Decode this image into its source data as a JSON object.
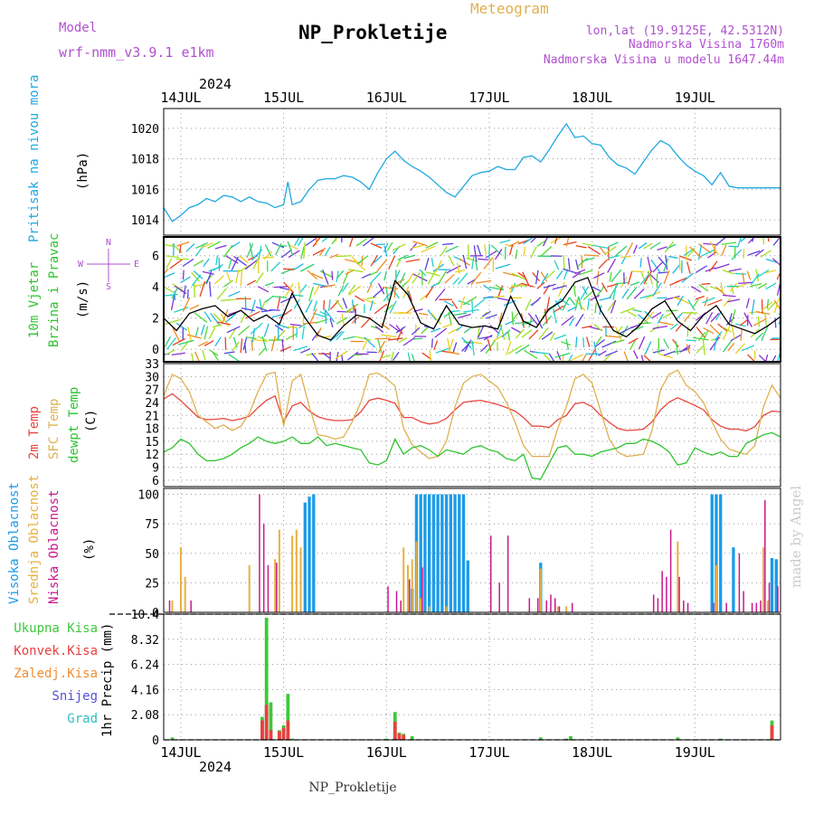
{
  "header": {
    "model_label": "Model",
    "model_name": "wrf-nmm_v3.9.1 e1km",
    "location": "NP_Prokletije",
    "meteogram_label": "Meteogram",
    "lonlat": "lon,lat (19.9125E, 42.5312N)",
    "elevation": "Nadmorska Visina 1760m",
    "model_elevation": "Nadmorska Visina u modelu 1647.44m",
    "footer": "NP_Prokletije",
    "watermark": "made by Angel"
  },
  "colors": {
    "pressure": "#1fa8e0",
    "temp2m": "#e8453c",
    "sfc": "#e0b050",
    "dewpt": "#2ec42e",
    "high_cloud": "#1a9be8",
    "mid_cloud": "#e8b040",
    "low_cloud": "#c8188c",
    "total_precip": "#3cc83c",
    "conv_precip": "#e84040",
    "frozen_precip": "#f08c30",
    "snow": "#5a50d8",
    "graupel": "#30c0c0",
    "grid": "#9a9a9a"
  },
  "chart_data": [
    {
      "type": "line",
      "panel": "pressure",
      "ylabel": "Pritisak na nivou mora",
      "unit": "(hPa)",
      "ylim": [
        1013,
        1021.3
      ],
      "yticks": [
        1014,
        1016,
        1018,
        1020
      ],
      "x_hours": [
        0,
        2,
        4,
        6,
        8,
        10,
        12,
        14,
        16,
        18,
        20,
        22,
        24,
        26,
        28,
        29,
        30,
        32,
        34,
        36,
        38,
        40,
        42,
        44,
        46,
        48,
        50,
        52,
        54,
        56,
        58,
        60,
        62,
        64,
        66,
        68,
        70,
        72,
        74,
        76,
        78,
        80,
        82,
        84,
        86,
        88,
        90,
        92,
        94,
        96,
        98,
        100,
        102,
        104,
        106,
        108,
        110,
        112,
        114,
        116,
        118,
        120,
        122,
        124,
        126,
        128,
        130,
        132,
        134,
        136,
        138,
        140,
        142,
        144
      ],
      "values": [
        1014.8,
        1013.9,
        1014.3,
        1014.8,
        1015.0,
        1015.4,
        1015.2,
        1015.6,
        1015.5,
        1015.2,
        1015.5,
        1015.2,
        1015.1,
        1014.8,
        1015.0,
        1016.5,
        1015.0,
        1015.2,
        1016.0,
        1016.6,
        1016.7,
        1016.7,
        1016.9,
        1016.8,
        1016.5,
        1016.0,
        1017.1,
        1018.0,
        1018.5,
        1017.9,
        1017.5,
        1017.2,
        1016.8,
        1016.3,
        1015.8,
        1015.5,
        1016.2,
        1016.9,
        1017.1,
        1017.2,
        1017.5,
        1017.3,
        1017.3,
        1018.1,
        1018.2,
        1017.8,
        1018.6,
        1019.5,
        1020.3,
        1019.4,
        1019.5,
        1019.0,
        1018.9,
        1018.1,
        1017.6,
        1017.4,
        1017.0,
        1017.8,
        1018.6,
        1019.2,
        1018.9,
        1018.2,
        1017.6,
        1017.2,
        1016.9,
        1016.3,
        1017.1,
        1016.2,
        1016.1,
        1016.1,
        1016.1,
        1016.1,
        1016.1,
        1016.1
      ]
    },
    {
      "type": "line",
      "panel": "wind",
      "ylabel": "10m Vjetar",
      "ylabel2": "Brzina i Pravac",
      "unit": "(m/s)",
      "compass": {
        "n": "N",
        "w": "W",
        "e": "E",
        "s": "S"
      },
      "ylim": [
        -0.8,
        7.2
      ],
      "yticks": [
        0,
        2,
        4,
        6
      ],
      "x_hours": [
        0,
        3,
        6,
        9,
        12,
        15,
        18,
        21,
        24,
        27,
        30,
        33,
        36,
        39,
        42,
        45,
        48,
        51,
        54,
        57,
        60,
        63,
        66,
        69,
        72,
        75,
        78,
        81,
        84,
        87,
        90,
        93,
        96,
        99,
        102,
        105,
        108,
        111,
        114,
        117,
        120,
        123,
        126,
        129,
        132,
        135,
        138,
        141,
        144
      ],
      "values": [
        2.0,
        1.2,
        2.3,
        2.6,
        2.8,
        2.1,
        2.5,
        1.8,
        2.2,
        1.6,
        3.6,
        2.0,
        0.9,
        0.6,
        1.5,
        2.2,
        2.0,
        1.4,
        4.4,
        3.5,
        1.7,
        1.3,
        2.8,
        1.6,
        1.4,
        1.5,
        1.3,
        3.4,
        1.8,
        1.4,
        2.6,
        3.1,
        4.3,
        4.6,
        2.5,
        1.2,
        0.8,
        1.5,
        2.6,
        3.1,
        1.8,
        1.2,
        2.2,
        2.8,
        1.6,
        1.3,
        1.0,
        1.5,
        2.1
      ]
    },
    {
      "type": "line",
      "panel": "temperature",
      "series_labels": [
        "2m Temp",
        "SFC Temp",
        "dewpt Temp"
      ],
      "unit": "(C)",
      "ylim": [
        4.5,
        33
      ],
      "yticks": [
        6,
        9,
        12,
        15,
        18,
        21,
        24,
        27,
        30,
        33
      ],
      "x_hours": [
        0,
        2,
        4,
        6,
        8,
        10,
        12,
        14,
        16,
        18,
        20,
        22,
        24,
        26,
        28,
        30,
        32,
        34,
        36,
        38,
        40,
        42,
        44,
        46,
        48,
        50,
        52,
        54,
        56,
        58,
        60,
        62,
        64,
        66,
        68,
        70,
        72,
        74,
        76,
        78,
        80,
        82,
        84,
        86,
        88,
        90,
        92,
        94,
        96,
        98,
        100,
        102,
        104,
        106,
        108,
        110,
        112,
        114,
        116,
        118,
        120,
        122,
        124,
        126,
        128,
        130,
        132,
        134,
        136,
        138,
        140,
        142,
        144
      ],
      "series": [
        {
          "name": "2m Temp",
          "values": [
            24.8,
            26.0,
            24.4,
            22.5,
            20.6,
            20.0,
            20.1,
            20.3,
            19.8,
            20.2,
            20.8,
            22.8,
            24.5,
            25.5,
            19.5,
            23.2,
            24.0,
            22.0,
            20.7,
            20.1,
            19.8,
            19.8,
            20.0,
            21.8,
            24.5,
            25.0,
            24.5,
            23.8,
            20.5,
            20.5,
            19.5,
            19.0,
            19.3,
            20.3,
            22.3,
            24.0,
            24.3,
            24.5,
            24.0,
            23.5,
            22.8,
            22.0,
            20.5,
            18.5,
            18.5,
            18.2,
            20.0,
            21.0,
            23.7,
            24.0,
            23.0,
            21.0,
            19.4,
            18.0,
            17.5,
            17.6,
            17.8,
            19.5,
            22.3,
            24.1,
            25.1,
            24.2,
            23.3,
            22.3,
            20.0,
            18.5,
            17.8,
            17.8,
            17.4,
            18.4,
            21.0,
            22.0,
            21.8
          ]
        },
        {
          "name": "SFC Temp",
          "values": [
            25.5,
            30.5,
            29.5,
            26.5,
            21.0,
            19.5,
            18.0,
            18.8,
            17.5,
            18.5,
            21.5,
            26.5,
            30.5,
            31.0,
            18.5,
            29.0,
            30.5,
            23.0,
            16.5,
            16.2,
            15.5,
            16.0,
            19.5,
            24.0,
            30.5,
            30.8,
            29.5,
            27.8,
            18.0,
            14.2,
            12.5,
            11.0,
            11.5,
            15.0,
            23.0,
            28.5,
            30.0,
            30.5,
            29.0,
            27.5,
            24.0,
            19.5,
            14.0,
            11.5,
            11.5,
            11.5,
            18.0,
            23.0,
            29.5,
            30.5,
            28.5,
            22.0,
            15.5,
            12.5,
            11.5,
            11.7,
            12.0,
            17.5,
            27.0,
            30.5,
            31.5,
            28.0,
            26.5,
            24.0,
            19.5,
            15.5,
            13.2,
            12.5,
            12.0,
            14.0,
            23.0,
            28.0,
            25.0
          ]
        },
        {
          "name": "dewpt Temp",
          "values": [
            12.5,
            13.5,
            15.5,
            14.5,
            12.0,
            10.5,
            10.5,
            11.0,
            12.0,
            13.5,
            14.5,
            16.0,
            15.0,
            14.5,
            15.0,
            16.0,
            14.5,
            14.5,
            16.0,
            14.0,
            14.5,
            14.0,
            13.5,
            13.0,
            10.0,
            9.5,
            10.5,
            15.5,
            12.0,
            13.5,
            14.0,
            13.0,
            11.5,
            13.0,
            12.5,
            12.0,
            13.5,
            14.0,
            13.0,
            12.5,
            11.0,
            10.5,
            12.0,
            6.5,
            6.2,
            10.0,
            13.5,
            14.0,
            12.0,
            12.0,
            11.5,
            12.5,
            13.0,
            13.5,
            14.5,
            14.5,
            15.5,
            15.0,
            14.0,
            12.5,
            9.5,
            10.0,
            13.5,
            12.5,
            11.8,
            12.5,
            11.5,
            11.5,
            14.5,
            15.5,
            16.5,
            17.0,
            16.0
          ]
        }
      ]
    },
    {
      "type": "bar",
      "panel": "clouds",
      "series_labels": [
        "Visoka Oblacnost",
        "Srednja Oblacnost",
        "Niska Oblacnost"
      ],
      "unit": "(%)",
      "ylim": [
        0,
        105
      ],
      "yticks": [
        0,
        25,
        50,
        75,
        100
      ],
      "high": {
        "x_hours": [
          33,
          34,
          35,
          58,
          59,
          60,
          61,
          62,
          63,
          64,
          65,
          66,
          67,
          68,
          69,
          70,
          71,
          88,
          128,
          129,
          130,
          133,
          142,
          143
        ],
        "values": [
          93,
          98,
          100,
          20,
          100,
          100,
          100,
          100,
          100,
          100,
          100,
          100,
          100,
          100,
          100,
          100,
          44,
          42,
          100,
          100,
          100,
          55,
          46,
          45
        ]
      },
      "mid": {
        "x_hours": [
          2,
          4,
          5,
          20,
          26,
          27,
          30,
          31,
          32,
          56,
          57,
          58,
          59,
          60,
          62,
          66,
          88,
          92,
          94,
          120,
          129,
          140,
          141
        ],
        "values": [
          10,
          55,
          30,
          40,
          45,
          70,
          65,
          70,
          55,
          55,
          40,
          45,
          60,
          12,
          5,
          5,
          37,
          5,
          5,
          60,
          40,
          55,
          10
        ]
      },
      "low": {
        "x_hours": [
          1,
          6,
          22,
          23,
          24,
          26,
          52,
          54,
          55,
          57,
          60,
          76,
          78,
          80,
          85,
          87,
          89,
          90,
          91,
          92,
          95,
          114,
          115,
          116,
          117,
          118,
          120,
          121,
          122,
          128,
          131,
          134,
          135,
          137,
          138,
          139,
          140,
          141,
          143
        ],
        "values": [
          10,
          10,
          100,
          75,
          40,
          42,
          22,
          18,
          10,
          28,
          38,
          65,
          25,
          65,
          12,
          12,
          10,
          15,
          12,
          5,
          8,
          15,
          12,
          35,
          30,
          70,
          30,
          10,
          8,
          8,
          8,
          50,
          18,
          8,
          8,
          10,
          95,
          25,
          22
        ]
      }
    },
    {
      "type": "bar",
      "panel": "precipitation",
      "series_labels": [
        "Ukupna Kisa",
        "Konvek.Kisa",
        "Zaledj.Kisa",
        "Snijeg",
        "Grad"
      ],
      "ylabel": "1hr Precip",
      "unit": "(mm)",
      "ylim": [
        0,
        10.4
      ],
      "yticks": [
        0,
        2.08,
        4.16,
        6.24,
        8.32,
        10.4
      ],
      "ytick_labels": [
        "0",
        "2.08",
        "4.16",
        "6.24",
        "8.32",
        "10.4"
      ],
      "total": {
        "x_hours": [
          2,
          23,
          24,
          25,
          27,
          28,
          29,
          30,
          52,
          54,
          55,
          56,
          58,
          88,
          94,
          95,
          120,
          130,
          142
        ],
        "values": [
          0.2,
          1.9,
          10.1,
          3.1,
          0.8,
          1.2,
          3.8,
          0.1,
          0.1,
          2.3,
          0.6,
          0.5,
          0.3,
          0.2,
          0.1,
          0.3,
          0.2,
          0.1,
          1.6
        ]
      },
      "conv": {
        "x_hours": [
          23,
          24,
          25,
          27,
          28,
          29,
          54,
          55,
          56,
          142
        ],
        "values": [
          1.6,
          2.9,
          0.8,
          0.7,
          1.0,
          1.6,
          1.5,
          0.5,
          0.4,
          1.2
        ]
      }
    }
  ],
  "axis": {
    "x_hours_total": 144,
    "start_offset_hours": 4,
    "days": [
      "14JUL",
      "15JUL",
      "16JUL",
      "17JUL",
      "18JUL",
      "19JUL"
    ],
    "year": "2024"
  }
}
